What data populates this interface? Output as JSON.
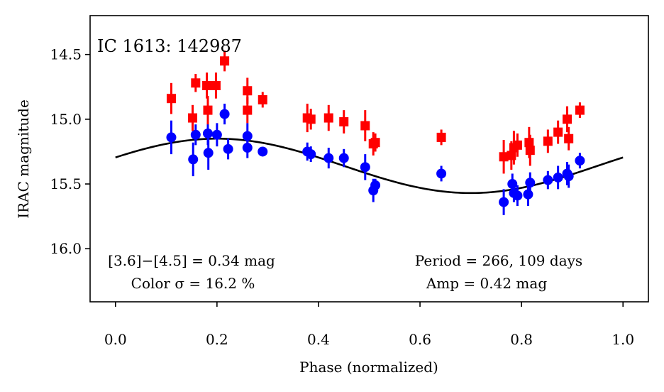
{
  "chart_data": {
    "type": "scatter",
    "title": "IC 1613: 142987",
    "xlabel": "Phase (normalized)",
    "ylabel": "IRAC magnitude",
    "xlim": [
      -0.05,
      1.05
    ],
    "ylim": [
      16.41,
      14.2
    ],
    "y_inverted": true,
    "xticks": [
      0.0,
      0.2,
      0.4,
      0.6,
      0.8,
      1.0
    ],
    "xtick_labels": [
      "0.0",
      "0.2",
      "0.4",
      "0.6",
      "0.8",
      "1.0"
    ],
    "yticks": [
      14.5,
      15.0,
      15.5,
      16.0
    ],
    "ytick_labels": [
      "14.5",
      "15.0",
      "15.5",
      "16.0"
    ],
    "series": [
      {
        "name": "[3.6]",
        "color": "#0000ff",
        "marker": "circle",
        "points": [
          {
            "x": 0.11,
            "y": 15.14,
            "err": 0.13
          },
          {
            "x": 0.153,
            "y": 15.31,
            "err": 0.13
          },
          {
            "x": 0.158,
            "y": 15.12,
            "err": 0.08
          },
          {
            "x": 0.182,
            "y": 15.11,
            "err": 0.09
          },
          {
            "x": 0.183,
            "y": 15.26,
            "err": 0.13
          },
          {
            "x": 0.2,
            "y": 15.12,
            "err": 0.09
          },
          {
            "x": 0.215,
            "y": 14.96,
            "err": 0.08
          },
          {
            "x": 0.222,
            "y": 15.23,
            "err": 0.08
          },
          {
            "x": 0.26,
            "y": 15.13,
            "err": 0.1
          },
          {
            "x": 0.26,
            "y": 15.22,
            "err": 0.08
          },
          {
            "x": 0.29,
            "y": 15.25,
            "err": 0.03
          },
          {
            "x": 0.378,
            "y": 15.25,
            "err": 0.07
          },
          {
            "x": 0.385,
            "y": 15.27,
            "err": 0.06
          },
          {
            "x": 0.42,
            "y": 15.3,
            "err": 0.08
          },
          {
            "x": 0.45,
            "y": 15.3,
            "err": 0.07
          },
          {
            "x": 0.492,
            "y": 15.37,
            "err": 0.1
          },
          {
            "x": 0.508,
            "y": 15.55,
            "err": 0.09
          },
          {
            "x": 0.512,
            "y": 15.51,
            "err": 0.05
          },
          {
            "x": 0.642,
            "y": 15.42,
            "err": 0.06
          },
          {
            "x": 0.765,
            "y": 15.64,
            "err": 0.1
          },
          {
            "x": 0.782,
            "y": 15.5,
            "err": 0.08
          },
          {
            "x": 0.785,
            "y": 15.57,
            "err": 0.07
          },
          {
            "x": 0.792,
            "y": 15.59,
            "err": 0.08
          },
          {
            "x": 0.813,
            "y": 15.58,
            "err": 0.09
          },
          {
            "x": 0.817,
            "y": 15.49,
            "err": 0.08
          },
          {
            "x": 0.852,
            "y": 15.47,
            "err": 0.07
          },
          {
            "x": 0.872,
            "y": 15.45,
            "err": 0.09
          },
          {
            "x": 0.89,
            "y": 15.42,
            "err": 0.09
          },
          {
            "x": 0.893,
            "y": 15.44,
            "err": 0.09
          },
          {
            "x": 0.915,
            "y": 15.32,
            "err": 0.06
          }
        ]
      },
      {
        "name": "[4.5]",
        "color": "#ff0000",
        "marker": "square",
        "points": [
          {
            "x": 0.11,
            "y": 14.84,
            "err": 0.12
          },
          {
            "x": 0.152,
            "y": 14.99,
            "err": 0.1
          },
          {
            "x": 0.158,
            "y": 14.72,
            "err": 0.07
          },
          {
            "x": 0.18,
            "y": 14.74,
            "err": 0.1
          },
          {
            "x": 0.182,
            "y": 14.93,
            "err": 0.11
          },
          {
            "x": 0.198,
            "y": 14.74,
            "err": 0.1
          },
          {
            "x": 0.215,
            "y": 14.55,
            "err": 0.08
          },
          {
            "x": 0.26,
            "y": 14.78,
            "err": 0.1
          },
          {
            "x": 0.26,
            "y": 14.93,
            "err": 0.1
          },
          {
            "x": 0.29,
            "y": 14.85,
            "err": 0.06
          },
          {
            "x": 0.378,
            "y": 14.99,
            "err": 0.11
          },
          {
            "x": 0.385,
            "y": 15.0,
            "err": 0.08
          },
          {
            "x": 0.42,
            "y": 14.99,
            "err": 0.1
          },
          {
            "x": 0.45,
            "y": 15.02,
            "err": 0.09
          },
          {
            "x": 0.492,
            "y": 15.05,
            "err": 0.12
          },
          {
            "x": 0.508,
            "y": 15.19,
            "err": 0.09
          },
          {
            "x": 0.512,
            "y": 15.18,
            "err": 0.07
          },
          {
            "x": 0.642,
            "y": 15.14,
            "err": 0.06
          },
          {
            "x": 0.765,
            "y": 15.29,
            "err": 0.13
          },
          {
            "x": 0.78,
            "y": 15.28,
            "err": 0.11
          },
          {
            "x": 0.785,
            "y": 15.22,
            "err": 0.13
          },
          {
            "x": 0.792,
            "y": 15.2,
            "err": 0.09
          },
          {
            "x": 0.815,
            "y": 15.18,
            "err": 0.12
          },
          {
            "x": 0.817,
            "y": 15.24,
            "err": 0.12
          },
          {
            "x": 0.852,
            "y": 15.17,
            "err": 0.09
          },
          {
            "x": 0.872,
            "y": 15.1,
            "err": 0.09
          },
          {
            "x": 0.89,
            "y": 15.0,
            "err": 0.1
          },
          {
            "x": 0.893,
            "y": 15.15,
            "err": 0.09
          },
          {
            "x": 0.915,
            "y": 14.93,
            "err": 0.06
          }
        ]
      }
    ],
    "fit_curve": {
      "name": "sinusoid fit",
      "color": "#000000",
      "mean": 15.36,
      "amplitude": 0.21,
      "phase_max_brightness": 0.2,
      "x_range": [
        0.0,
        1.0
      ]
    },
    "annotations": {
      "color_line1": "[3.6]−[4.5] = 0.34 mag",
      "color_line2": "Color σ = 16.2 %",
      "period_line": "Period = 266, 109 days",
      "amp_line": "Amp = 0.42 mag"
    }
  }
}
